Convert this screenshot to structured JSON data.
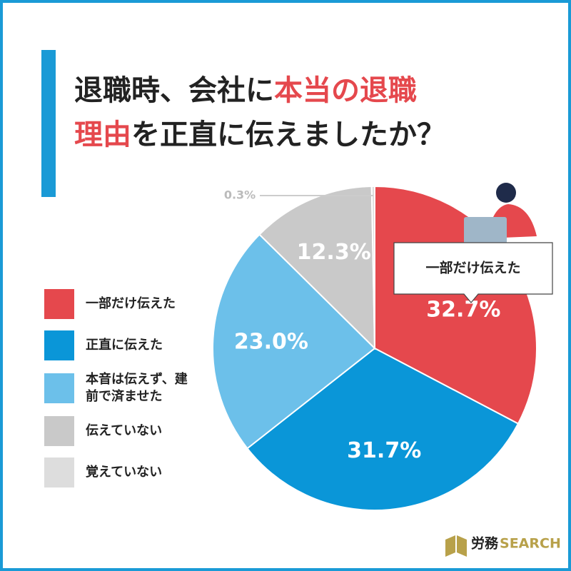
{
  "chart_data": {
    "type": "pie",
    "title_lines": [
      [
        {
          "text": "退職時、会社に",
          "color": "#222222"
        },
        {
          "text": "本当の退職",
          "color": "#e5484d"
        }
      ],
      [
        {
          "text": "理由",
          "color": "#e5484d"
        },
        {
          "text": "を正直に伝えましたか？",
          "color": "#222222"
        }
      ]
    ],
    "categories": [
      "一部だけ伝えた",
      "正直に伝えた",
      "本音は伝えず、建前で済ませた",
      "伝えていない",
      "覚えていない"
    ],
    "values": [
      32.7,
      31.7,
      23.0,
      12.3,
      0.3
    ],
    "value_labels": [
      "32.7%",
      "31.7%",
      "23.0%",
      "12.3%",
      "0.3%"
    ],
    "colors": [
      "#e5484d",
      "#0a96d8",
      "#6cc0ea",
      "#c9c9c9",
      "#dddddd"
    ],
    "callout": "一部だけ伝えた",
    "brand": [
      "労務",
      "SEARCH"
    ]
  }
}
